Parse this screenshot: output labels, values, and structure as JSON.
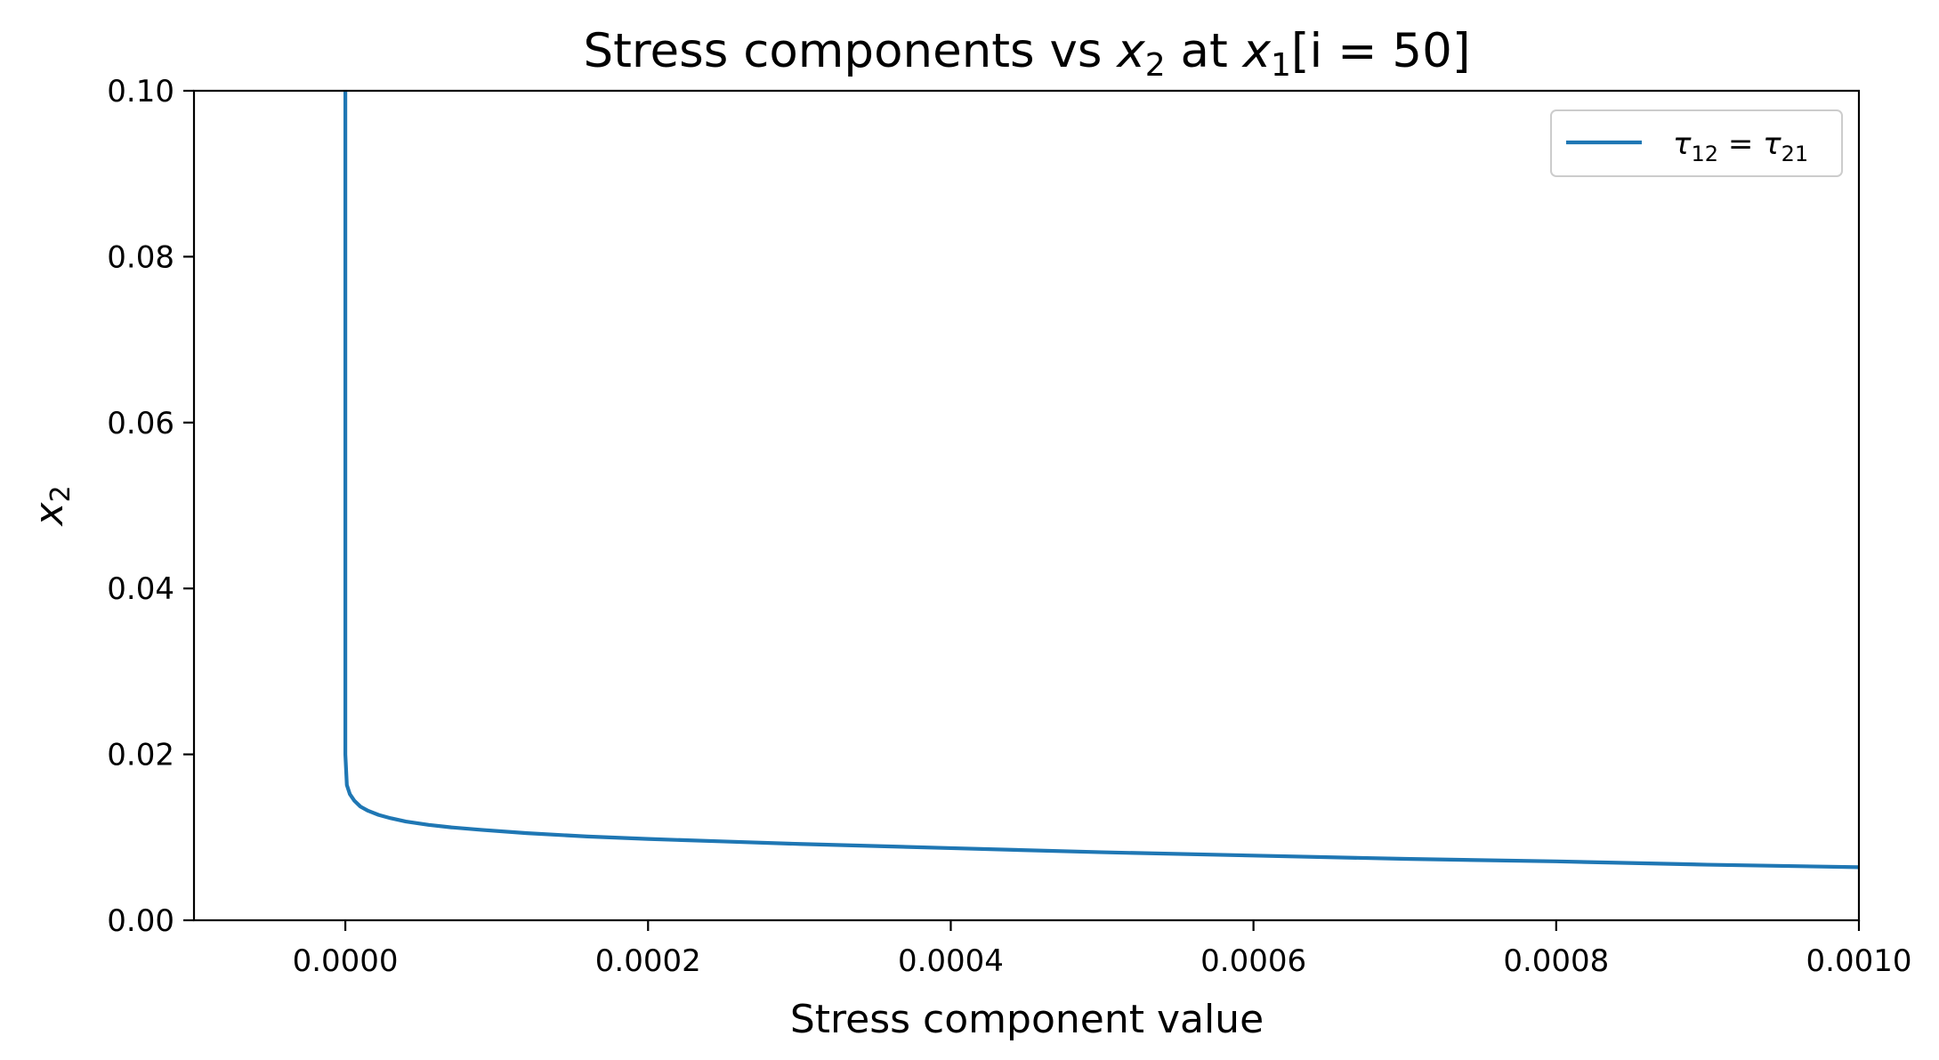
{
  "chart_data": {
    "type": "line",
    "title": {
      "pre": "Stress components vs ",
      "var1": "x",
      "sub1": "2",
      "mid": " at ",
      "var2": "x",
      "sub2": "1",
      "post": "[i = 50]"
    },
    "xlabel": "Stress component value",
    "ylabel": {
      "var": "x",
      "sub": "2"
    },
    "xlim": [
      -0.0001,
      0.001
    ],
    "ylim": [
      0.0,
      0.1
    ],
    "xticks": [
      0.0,
      0.0002,
      0.0004,
      0.0006,
      0.0008,
      0.001
    ],
    "xtick_labels": [
      "0.0000",
      "0.0002",
      "0.0004",
      "0.0006",
      "0.0008",
      "0.0010"
    ],
    "yticks": [
      0.0,
      0.02,
      0.04,
      0.06,
      0.08,
      0.1
    ],
    "ytick_labels": [
      "0.00",
      "0.02",
      "0.04",
      "0.06",
      "0.08",
      "0.10"
    ],
    "grid": false,
    "legend": {
      "position": "top-right",
      "label": {
        "a": "τ",
        "a_sub": "12",
        "eq": " = ",
        "b": "τ",
        "b_sub": "21"
      }
    },
    "series": [
      {
        "color": "#1f77b4",
        "x": [
          0.0,
          0.0,
          0.0,
          0.0,
          0.0,
          1e-06,
          3e-06,
          6e-06,
          1e-05,
          1.5e-05,
          2.2e-05,
          3e-05,
          4e-05,
          5.5e-05,
          7e-05,
          9e-05,
          0.00012,
          0.00016,
          0.0002,
          0.00025,
          0.0003,
          0.0004,
          0.0005,
          0.0006,
          0.0007,
          0.0008,
          0.0009,
          0.001
        ],
        "y": [
          0.1,
          0.08,
          0.05,
          0.03,
          0.02,
          0.0163,
          0.0152,
          0.0144,
          0.0137,
          0.0132,
          0.0127,
          0.0123,
          0.0119,
          0.0115,
          0.0112,
          0.0109,
          0.0105,
          0.0101,
          0.0098,
          0.0095,
          0.0092,
          0.0087,
          0.0082,
          0.0078,
          0.0074,
          0.0071,
          0.0067,
          0.0064
        ]
      }
    ]
  }
}
